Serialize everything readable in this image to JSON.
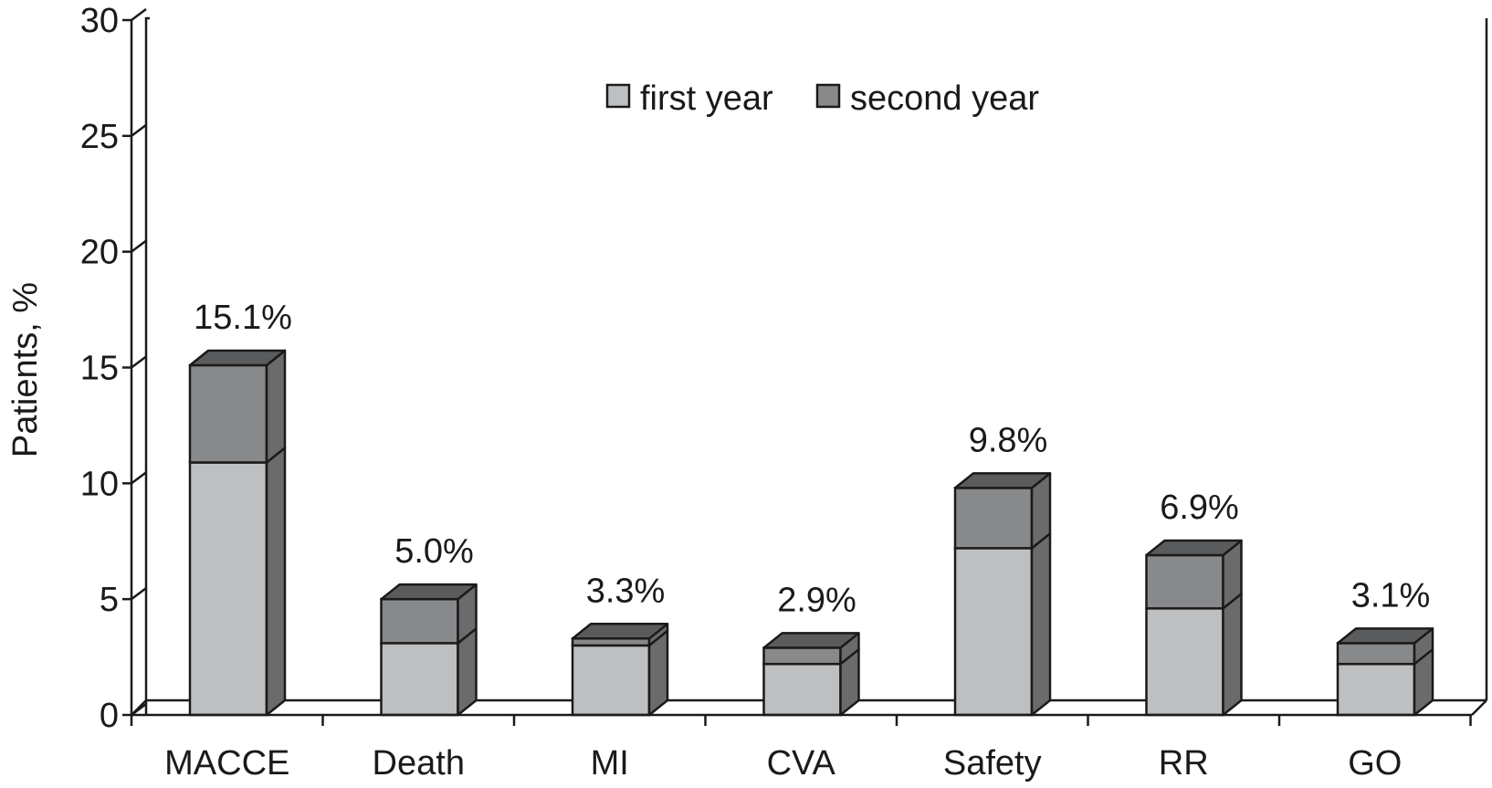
{
  "chart_data": {
    "type": "bar",
    "stacked": true,
    "three_d": true,
    "categories": [
      "MACCE",
      "Death",
      "MI",
      "CVA",
      "Safety",
      "RR",
      "GO"
    ],
    "series": [
      {
        "name": "first year",
        "values": [
          10.9,
          3.1,
          3.0,
          2.2,
          7.2,
          4.6,
          2.2
        ],
        "color": "#bebfc1"
      },
      {
        "name": "second year",
        "values": [
          4.2,
          1.9,
          0.3,
          0.7,
          2.6,
          2.3,
          0.9
        ],
        "color": "#88898b"
      }
    ],
    "totals_labels": [
      "15.1%",
      "5.0%",
      "3.3%",
      "2.9%",
      "9.8%",
      "6.9%",
      "3.1%"
    ],
    "ylabel": "Patients, %",
    "xlabel": "",
    "ylim": [
      0,
      30
    ],
    "yticks": [
      0,
      5,
      10,
      15,
      20,
      25,
      30
    ],
    "grid": false,
    "legend_position": "top-center",
    "side_color": "#6a6b6d",
    "top_color": "#5a5b5d"
  }
}
